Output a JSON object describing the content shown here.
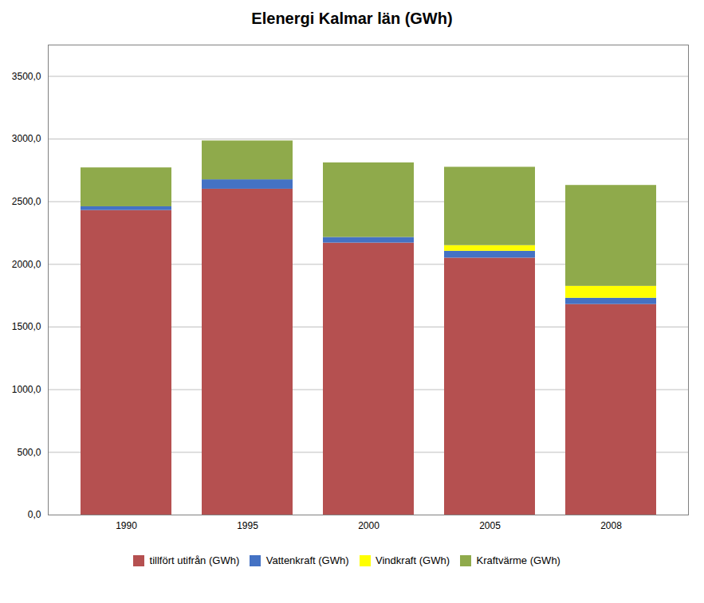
{
  "chart_data": {
    "type": "bar",
    "title": "Elenergi Kalmar län (GWh)",
    "categories": [
      "1990",
      "1995",
      "2000",
      "2005",
      "2008"
    ],
    "series": [
      {
        "name": "tillfört utifrån (GWh)",
        "color": "#b55050",
        "values": [
          2430,
          2600,
          2170,
          2050,
          1680
        ]
      },
      {
        "name": "Vattenkraft (GWh)",
        "color": "#4472c4",
        "values": [
          30,
          75,
          45,
          55,
          50
        ]
      },
      {
        "name": "Vindkraft (GWh)",
        "color": "#ffff00",
        "values": [
          0,
          0,
          0,
          45,
          95
        ]
      },
      {
        "name": "Kraftvärme (GWh)",
        "color": "#8faa4b",
        "values": [
          310,
          310,
          595,
          625,
          805
        ]
      }
    ],
    "stacked": true,
    "ylim": [
      0,
      3750
    ],
    "yticks": [
      {
        "value": 0,
        "label": "0,0"
      },
      {
        "value": 500,
        "label": "500,0"
      },
      {
        "value": 1000,
        "label": "1000,0"
      },
      {
        "value": 1500,
        "label": "1500,0"
      },
      {
        "value": 2000,
        "label": "2000,0"
      },
      {
        "value": 2500,
        "label": "2500,0"
      },
      {
        "value": 3000,
        "label": "3000,0"
      },
      {
        "value": 3500,
        "label": "3500,0"
      }
    ],
    "grid": true,
    "legend": "bottom"
  }
}
